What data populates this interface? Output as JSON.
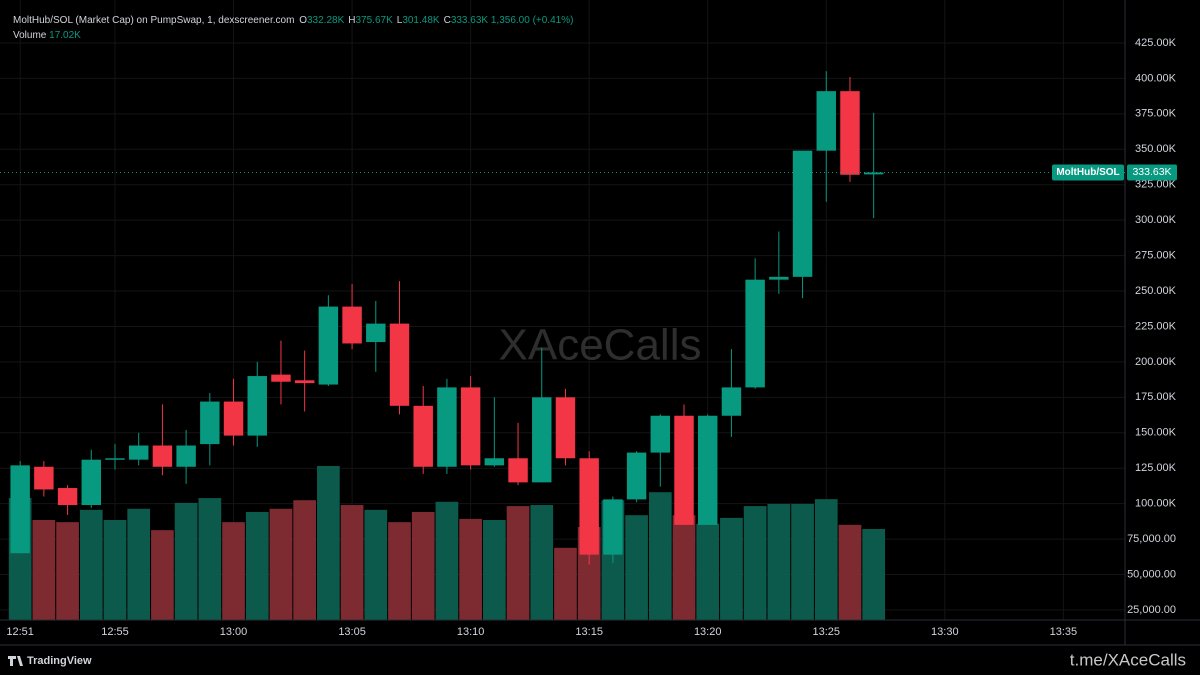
{
  "chart_data": {
    "type": "candlestick",
    "title": "MoltHub/SOL (Market Cap) on PumpSwap, 1, dexscreener.com",
    "ohlc_legend": [
      {
        "key": "O",
        "text": "332.28K"
      },
      {
        "key": "H",
        "text": "375.67K"
      },
      {
        "key": "L",
        "text": "301.48K"
      },
      {
        "key": "C",
        "text": "333.63K"
      }
    ],
    "change_text": "1,356.00 (+0.41%)",
    "volume_title": "Volume",
    "volume_text": "17.02K",
    "symbol_label": "MoltHub/SOL",
    "last_price_label": "333.63K",
    "watermark": "XAceCalls",
    "footer_brand": "TradingView",
    "footer_link": "t.me/XAceCalls",
    "x": [
      0,
      1,
      2,
      3,
      4,
      5,
      6,
      7,
      8,
      9,
      10,
      11,
      12,
      13,
      14,
      15,
      16,
      17,
      18,
      19,
      20,
      21,
      22,
      23,
      24,
      25,
      26,
      27,
      28,
      29,
      30,
      31,
      32,
      33,
      34,
      35,
      36
    ],
    "open": [
      65000,
      126000,
      111000,
      99000,
      131000,
      131000,
      141000,
      126000,
      142000,
      172000,
      148000,
      191000,
      187000,
      184000,
      239000,
      214000,
      227000,
      169000,
      126000,
      182000,
      127000,
      132000,
      115000,
      175000,
      132000,
      64000,
      103000,
      136000,
      162000,
      85000,
      162000,
      182000,
      258000,
      260000,
      349000,
      391000,
      332280
    ],
    "high": [
      130000,
      130000,
      113000,
      138000,
      142000,
      150000,
      170000,
      152000,
      178000,
      188000,
      200000,
      215000,
      208000,
      247000,
      255000,
      243000,
      257000,
      183000,
      188000,
      190000,
      175000,
      157000,
      210000,
      181000,
      137000,
      105000,
      137000,
      163000,
      170000,
      163000,
      209000,
      273000,
      292000,
      349000,
      405000,
      401000,
      375670
    ],
    "low": [
      65000,
      105000,
      92000,
      97000,
      124000,
      127000,
      120000,
      114000,
      127000,
      141000,
      140000,
      170000,
      165000,
      183000,
      209000,
      193000,
      163000,
      121000,
      121000,
      124000,
      126000,
      113000,
      115000,
      127000,
      57000,
      58000,
      101000,
      112000,
      85000,
      85000,
      147000,
      181000,
      248000,
      245000,
      313000,
      327000,
      301480
    ],
    "close": [
      127000,
      110000,
      99000,
      131000,
      132000,
      141000,
      126000,
      141000,
      172000,
      148000,
      190000,
      186000,
      185000,
      239000,
      213000,
      227000,
      169000,
      126000,
      182000,
      127000,
      132000,
      115000,
      175000,
      132000,
      64000,
      103000,
      136000,
      162000,
      85000,
      162000,
      182000,
      258000,
      260000,
      349000,
      391000,
      332000,
      333630
    ],
    "volume": [
      22800,
      18700,
      18300,
      20600,
      18700,
      20800,
      16800,
      21900,
      22800,
      18300,
      20200,
      20800,
      22400,
      28800,
      21500,
      20600,
      18300,
      20200,
      22100,
      18900,
      18700,
      21300,
      21500,
      13500,
      17400,
      22400,
      19600,
      23900,
      19600,
      18000,
      19100,
      21300,
      21700,
      21700,
      22600,
      17800,
      17020
    ],
    "up_color": "#089981",
    "down_color": "#f23645",
    "up_volume_color": "#0b5a4c",
    "down_volume_color": "#7d2a31",
    "ylim": [
      17900,
      455300
    ],
    "volume_ylim": [
      0,
      37400
    ],
    "xlim": [
      -0.85,
      46.6
    ],
    "yticks": [
      {
        "value": 25000,
        "label": "25,000.00"
      },
      {
        "value": 50000,
        "label": "50,000.00"
      },
      {
        "value": 75000,
        "label": "75,000.00"
      },
      {
        "value": 100000,
        "label": "100.00K"
      },
      {
        "value": 125000,
        "label": "125.00K"
      },
      {
        "value": 150000,
        "label": "150.00K"
      },
      {
        "value": 175000,
        "label": "175.00K"
      },
      {
        "value": 200000,
        "label": "200.00K"
      },
      {
        "value": 225000,
        "label": "225.00K"
      },
      {
        "value": 250000,
        "label": "250.00K"
      },
      {
        "value": 275000,
        "label": "275.00K"
      },
      {
        "value": 300000,
        "label": "300.00K"
      },
      {
        "value": 325000,
        "label": "325.00K"
      },
      {
        "value": 350000,
        "label": "350.00K"
      },
      {
        "value": 375000,
        "label": "375.00K"
      },
      {
        "value": 400000,
        "label": "400.00K"
      },
      {
        "value": 425000,
        "label": "425.00K"
      }
    ],
    "xticks": [
      {
        "value": 0,
        "label": "12:51"
      },
      {
        "value": 4,
        "label": "12:55"
      },
      {
        "value": 9,
        "label": "13:00"
      },
      {
        "value": 14,
        "label": "13:05"
      },
      {
        "value": 19,
        "label": "13:10"
      },
      {
        "value": 24,
        "label": "13:15"
      },
      {
        "value": 29,
        "label": "13:20"
      },
      {
        "value": 34,
        "label": "13:25"
      },
      {
        "value": 39,
        "label": "13:30"
      },
      {
        "value": 44,
        "label": "13:35"
      }
    ],
    "grid": true
  }
}
